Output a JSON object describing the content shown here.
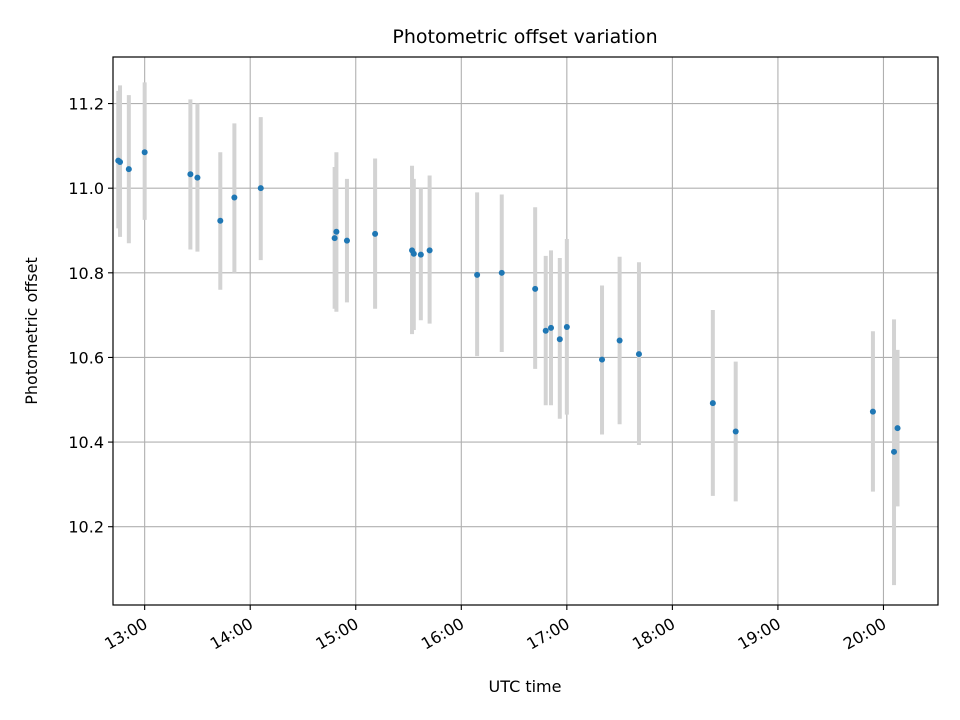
{
  "chart_data": {
    "type": "scatter",
    "title": "Photometric offset variation",
    "xlabel": "UTC time",
    "ylabel": "Photometric offset",
    "x_unit": "UTC time of day",
    "xlim": [
      "12:42",
      "20:31"
    ],
    "ylim": [
      10.015,
      11.31
    ],
    "x_ticks": [
      "13:00",
      "14:00",
      "15:00",
      "16:00",
      "17:00",
      "18:00",
      "19:00",
      "20:00"
    ],
    "y_ticks": [
      "10.2",
      "10.4",
      "10.6",
      "10.8",
      "11.0",
      "11.2"
    ],
    "grid": true,
    "legend": "none",
    "colors": {
      "point": "#1f77b4",
      "error_bar": "#d3d3d3",
      "grid": "#b0b0b0",
      "axes": "#000000"
    },
    "series": [
      {
        "points": [
          {
            "x": "12:45",
            "y": 11.065,
            "lo": 10.905,
            "hi": 11.23
          },
          {
            "x": "12:46",
            "y": 11.062,
            "lo": 10.885,
            "hi": 11.243
          },
          {
            "x": "12:51",
            "y": 11.045,
            "lo": 10.87,
            "hi": 11.22
          },
          {
            "x": "13:00",
            "y": 11.085,
            "lo": 10.925,
            "hi": 11.25
          },
          {
            "x": "13:26",
            "y": 11.033,
            "lo": 10.855,
            "hi": 11.21
          },
          {
            "x": "13:30",
            "y": 11.025,
            "lo": 10.85,
            "hi": 11.2
          },
          {
            "x": "13:43",
            "y": 10.923,
            "lo": 10.76,
            "hi": 11.085
          },
          {
            "x": "13:51",
            "y": 10.978,
            "lo": 10.8,
            "hi": 11.153
          },
          {
            "x": "14:06",
            "y": 11.0,
            "lo": 10.83,
            "hi": 11.168
          },
          {
            "x": "14:48",
            "y": 10.882,
            "lo": 10.715,
            "hi": 11.05
          },
          {
            "x": "14:49",
            "y": 10.897,
            "lo": 10.708,
            "hi": 11.085
          },
          {
            "x": "14:55",
            "y": 10.876,
            "lo": 10.73,
            "hi": 11.022
          },
          {
            "x": "15:11",
            "y": 10.892,
            "lo": 10.715,
            "hi": 11.07
          },
          {
            "x": "15:32",
            "y": 10.853,
            "lo": 10.655,
            "hi": 11.053
          },
          {
            "x": "15:33",
            "y": 10.845,
            "lo": 10.665,
            "hi": 11.022
          },
          {
            "x": "15:37",
            "y": 10.843,
            "lo": 10.688,
            "hi": 11.0
          },
          {
            "x": "15:42",
            "y": 10.853,
            "lo": 10.68,
            "hi": 11.03
          },
          {
            "x": "16:09",
            "y": 10.795,
            "lo": 10.603,
            "hi": 10.99
          },
          {
            "x": "16:23",
            "y": 10.8,
            "lo": 10.613,
            "hi": 10.985
          },
          {
            "x": "16:42",
            "y": 10.762,
            "lo": 10.573,
            "hi": 10.955
          },
          {
            "x": "16:48",
            "y": 10.663,
            "lo": 10.487,
            "hi": 10.84
          },
          {
            "x": "16:51",
            "y": 10.67,
            "lo": 10.487,
            "hi": 10.853
          },
          {
            "x": "16:56",
            "y": 10.643,
            "lo": 10.455,
            "hi": 10.835
          },
          {
            "x": "17:00",
            "y": 10.672,
            "lo": 10.465,
            "hi": 10.88
          },
          {
            "x": "17:20",
            "y": 10.595,
            "lo": 10.418,
            "hi": 10.77
          },
          {
            "x": "17:30",
            "y": 10.64,
            "lo": 10.442,
            "hi": 10.838
          },
          {
            "x": "17:41",
            "y": 10.608,
            "lo": 10.393,
            "hi": 10.825
          },
          {
            "x": "18:23",
            "y": 10.492,
            "lo": 10.273,
            "hi": 10.712
          },
          {
            "x": "18:36",
            "y": 10.425,
            "lo": 10.26,
            "hi": 10.59
          },
          {
            "x": "19:54",
            "y": 10.472,
            "lo": 10.283,
            "hi": 10.662
          },
          {
            "x": "20:06",
            "y": 10.377,
            "lo": 10.062,
            "hi": 10.69
          },
          {
            "x": "20:08",
            "y": 10.433,
            "lo": 10.248,
            "hi": 10.618
          }
        ]
      }
    ]
  }
}
